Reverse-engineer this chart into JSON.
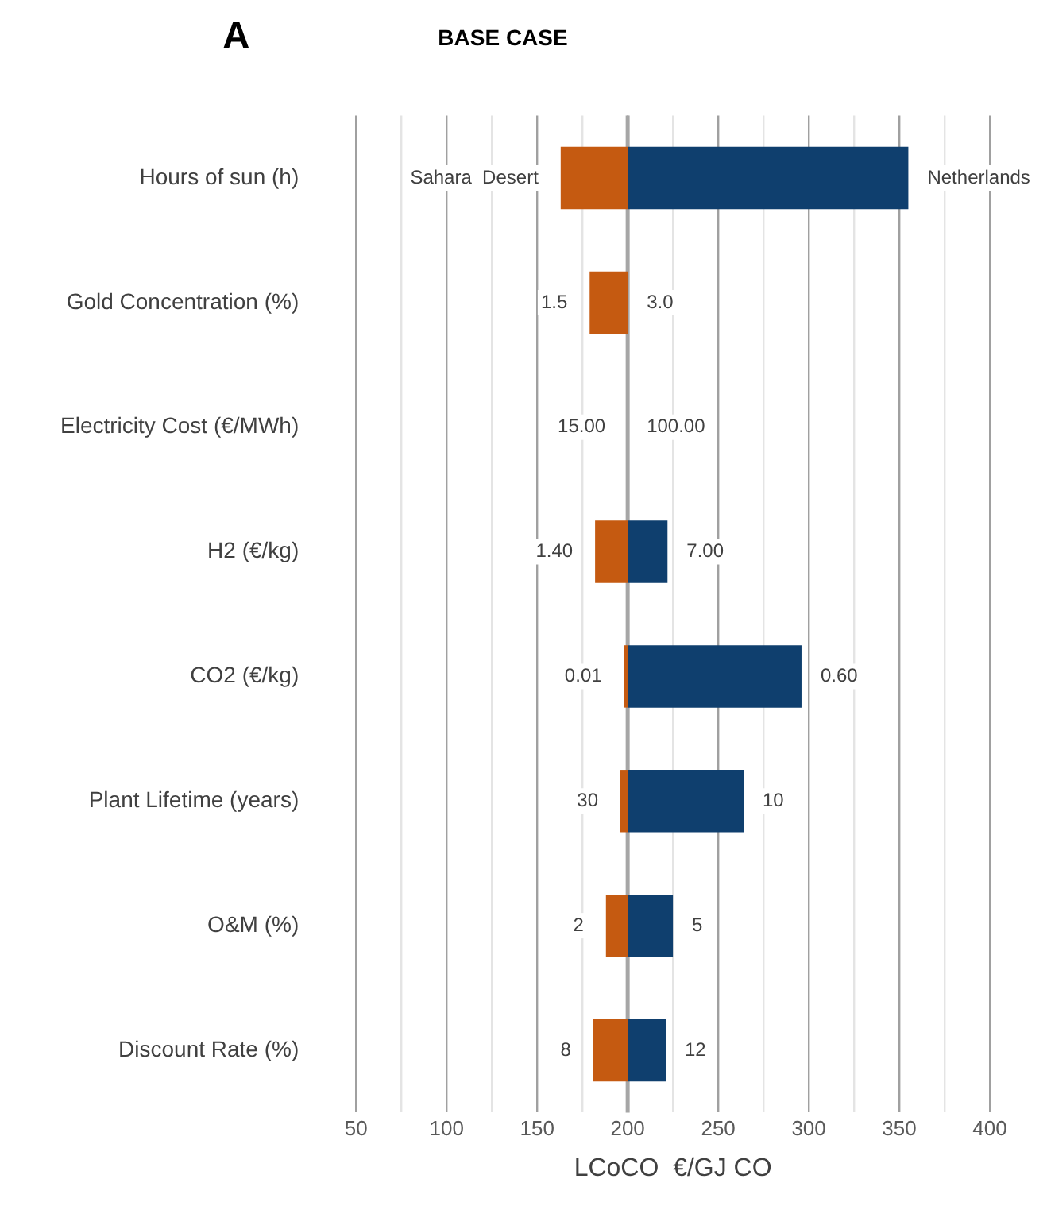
{
  "chart_data": {
    "type": "bar",
    "orientation": "horizontal",
    "title": "BASE CASE",
    "xlabel": "LCoCO  €/GJ CO",
    "annotations": [
      "A",
      {
        "text": "Sahara  Desert",
        "x": 163,
        "y": "Hours of sun (h)"
      },
      {
        "text": "Netherlands",
        "x": 355,
        "y": "Hours of sun (h)"
      },
      {
        "text": "1.5",
        "x": 179,
        "y": "Gold Concentration (%)"
      },
      {
        "text": "3.0",
        "x": 200,
        "y": "Gold Concentration (%)"
      },
      {
        "text": "15.00",
        "x": 200,
        "y": "Electricity Cost (€/MWh)"
      },
      {
        "text": "100.00",
        "x": 200,
        "y": "Electricity Cost (€/MWh)"
      },
      {
        "text": "1.40",
        "x": 182,
        "y": "H2 (€/kg)"
      },
      {
        "text": "7.00",
        "x": 222,
        "y": "H2 (€/kg)"
      },
      {
        "text": "0.01",
        "x": 198,
        "y": "CO2 (€/kg)"
      },
      {
        "text": "0.60",
        "x": 296,
        "y": "CO2 (€/kg)"
      },
      {
        "text": "30",
        "x": 196,
        "y": "Plant Lifetime (years)"
      },
      {
        "text": "10",
        "x": 264,
        "y": "Plant Lifetime (years)"
      },
      {
        "text": "2",
        "x": 188,
        "y": "O&M (%)"
      },
      {
        "text": "5",
        "x": 225,
        "y": "O&M (%)"
      },
      {
        "text": "8",
        "x": 181,
        "y": "Discount Rate (%)"
      },
      {
        "text": "12",
        "x": 221,
        "y": "Discount Rate (%)"
      }
    ],
    "categories": [
      "Hours of sun (h)",
      "Gold Concentration (%)",
      "Electricity Cost (€/MWh)",
      "H2 (€/kg)",
      "CO2 (€/kg)",
      "Plant Lifetime (years)",
      "O&M (%)",
      "Discount Rate (%)"
    ],
    "series": [
      {
        "color": "#c55a11",
        "base": [
          163,
          179,
          null,
          182,
          198,
          196,
          188,
          181
        ],
        "values": [
          37,
          21,
          null,
          18,
          2,
          4,
          12,
          19
        ]
      },
      {
        "color": "#0f3f6e",
        "base": [
          200,
          null,
          null,
          200,
          200,
          200,
          200,
          200
        ],
        "values": [
          155,
          null,
          null,
          22,
          96,
          64,
          25,
          21
        ]
      }
    ],
    "xlim": [
      50,
      400
    ],
    "xticks": [
      50,
      {
        "value": 75,
        "label": null
      },
      100,
      {
        "value": 125,
        "label": null
      },
      150,
      {
        "value": 175,
        "label": null
      },
      200,
      {
        "value": 225,
        "label": null
      },
      250,
      {
        "value": 275,
        "label": null
      },
      300,
      {
        "value": 325,
        "label": null
      },
      350,
      {
        "value": 375,
        "label": null
      },
      400
    ],
    "ref_lines": [
      {
        "axis": "x",
        "value": 200,
        "color": "#a6a6a6"
      }
    ],
    "grid": "x",
    "legend": false
  }
}
